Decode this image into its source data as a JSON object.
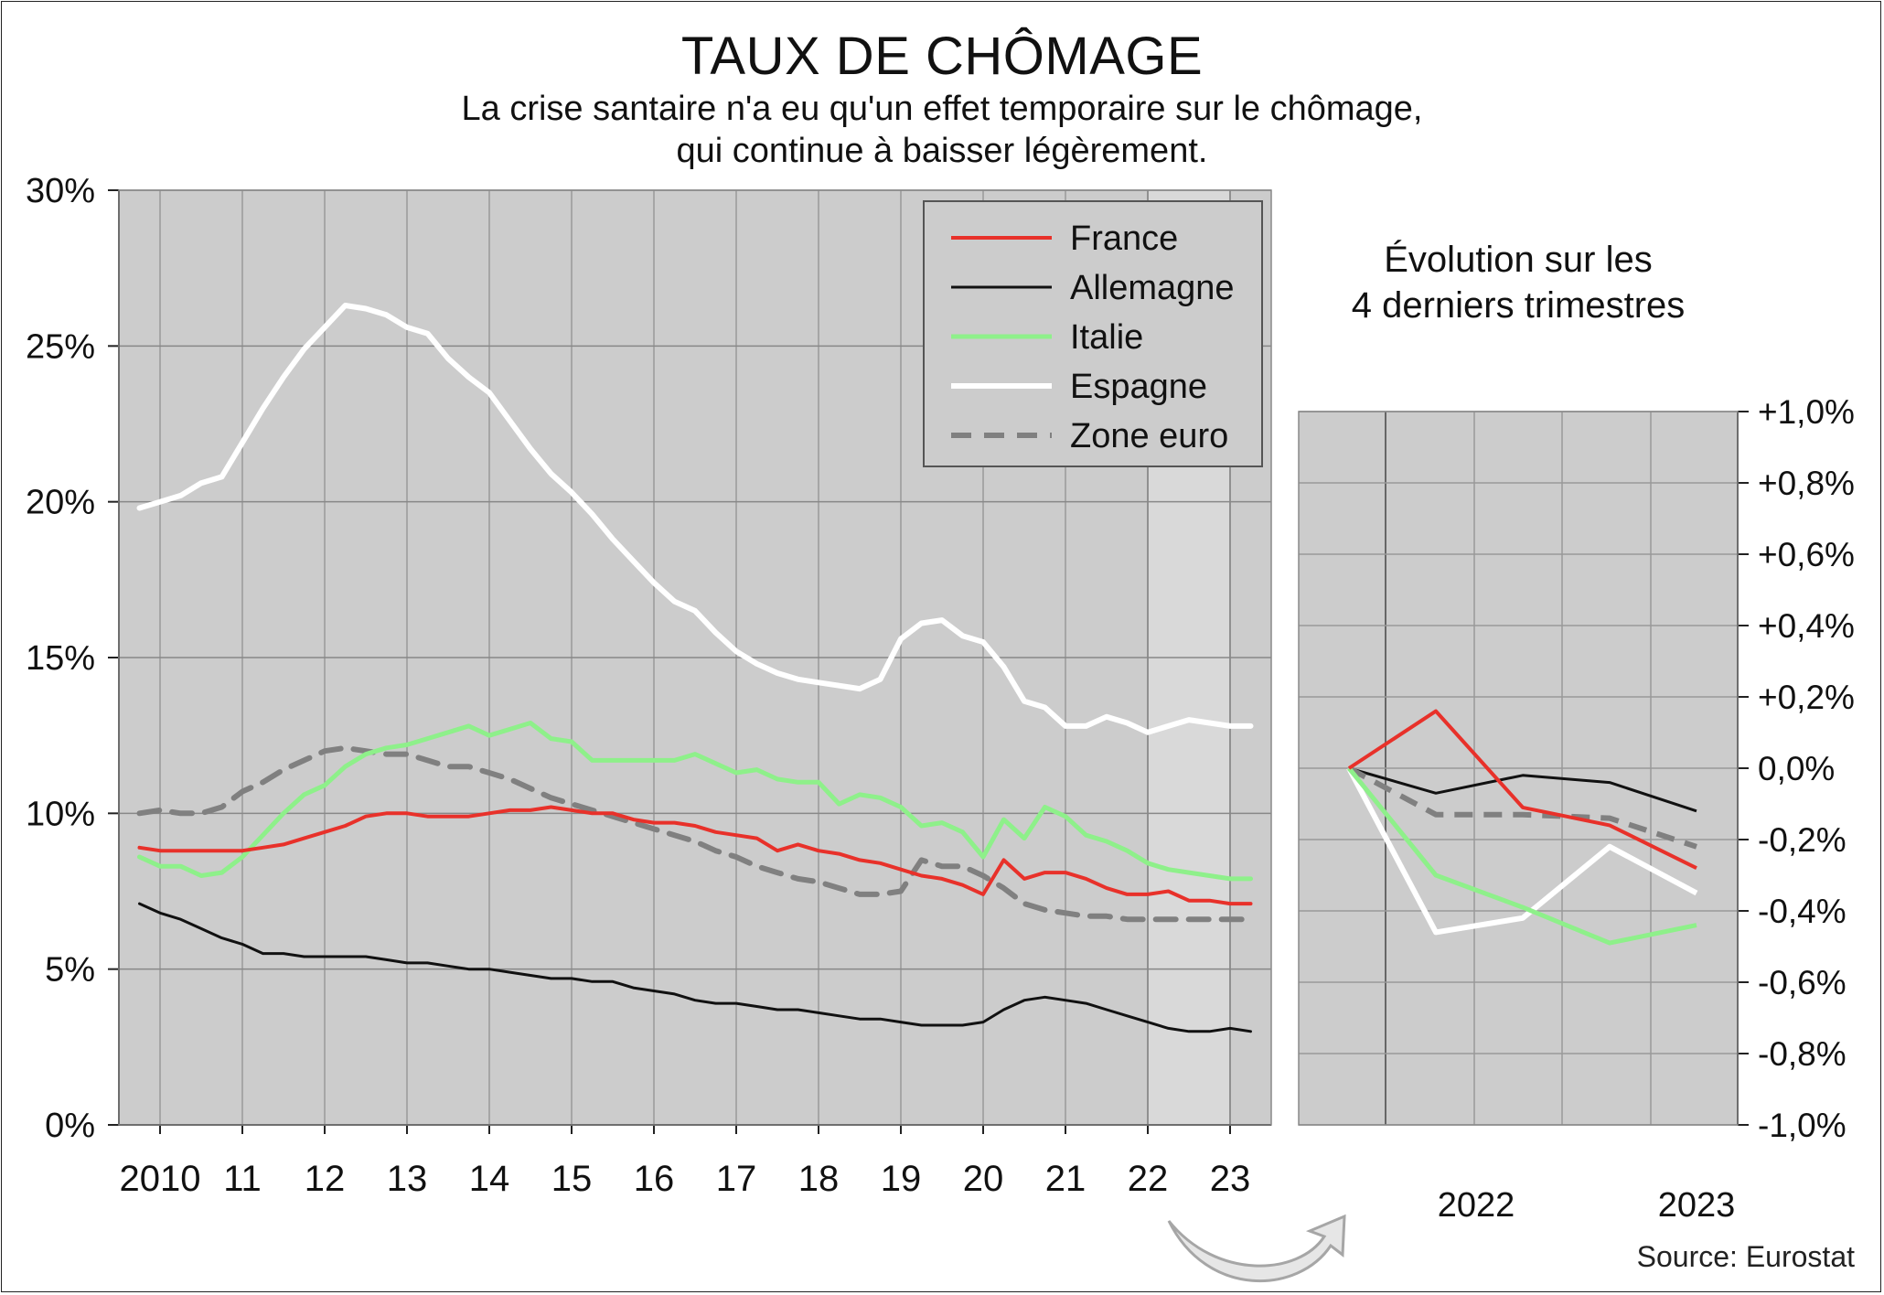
{
  "title": "TAUX DE CHÔMAGE",
  "subtitle_line1": "La crise santaire n'a eu qu'un effet temporaire sur le chômage,",
  "subtitle_line2": "qui continue à baisser légèrement.",
  "side_title_line1": "Évolution sur les",
  "side_title_line2": "4 derniers trimestres",
  "source": "Source: Eurostat",
  "chart_data": [
    {
      "type": "line",
      "title": "TAUX DE CHÔMAGE",
      "ylim": [
        0,
        30
      ],
      "y_ticks": [
        "0%",
        "5%",
        "10%",
        "15%",
        "20%",
        "25%",
        "30%"
      ],
      "y_tick_values": [
        0,
        5,
        10,
        15,
        20,
        25,
        30
      ],
      "x_tick_labels": [
        "2010",
        "11",
        "12",
        "13",
        "14",
        "15",
        "16",
        "17",
        "18",
        "19",
        "20",
        "21",
        "22",
        "23"
      ],
      "xlim": [
        2009.5,
        2023.5
      ],
      "grid": true,
      "legend_position": "top-right",
      "highlight_range": [
        2022.0,
        2023.0
      ],
      "series": [
        {
          "name": "France",
          "color": "#e8312a",
          "style": "solid",
          "x": [
            2009.75,
            2010.0,
            2010.25,
            2010.5,
            2010.75,
            2011.0,
            2011.25,
            2011.5,
            2011.75,
            2012.0,
            2012.25,
            2012.5,
            2012.75,
            2013.0,
            2013.25,
            2013.5,
            2013.75,
            2014.0,
            2014.25,
            2014.5,
            2014.75,
            2015.0,
            2015.25,
            2015.5,
            2015.75,
            2016.0,
            2016.25,
            2016.5,
            2016.75,
            2017.0,
            2017.25,
            2017.5,
            2017.75,
            2018.0,
            2018.25,
            2018.5,
            2018.75,
            2019.0,
            2019.25,
            2019.5,
            2019.75,
            2020.0,
            2020.25,
            2020.5,
            2020.75,
            2021.0,
            2021.25,
            2021.5,
            2021.75,
            2022.0,
            2022.25,
            2022.5,
            2022.75,
            2023.0,
            2023.25
          ],
          "y": [
            8.9,
            8.8,
            8.8,
            8.8,
            8.8,
            8.8,
            8.9,
            9.0,
            9.2,
            9.4,
            9.6,
            9.9,
            10.0,
            10.0,
            9.9,
            9.9,
            9.9,
            10.0,
            10.1,
            10.1,
            10.2,
            10.1,
            10.0,
            10.0,
            9.8,
            9.7,
            9.7,
            9.6,
            9.4,
            9.3,
            9.2,
            8.8,
            9.0,
            8.8,
            8.7,
            8.5,
            8.4,
            8.2,
            8.0,
            7.9,
            7.7,
            7.4,
            8.5,
            7.9,
            8.1,
            8.1,
            7.9,
            7.6,
            7.4,
            7.4,
            7.5,
            7.2,
            7.2,
            7.1,
            7.1
          ]
        },
        {
          "name": "Allemagne",
          "color": "#111111",
          "style": "solid",
          "x": [
            2009.75,
            2010.0,
            2010.25,
            2010.5,
            2010.75,
            2011.0,
            2011.25,
            2011.5,
            2011.75,
            2012.0,
            2012.25,
            2012.5,
            2012.75,
            2013.0,
            2013.25,
            2013.5,
            2013.75,
            2014.0,
            2014.25,
            2014.5,
            2014.75,
            2015.0,
            2015.25,
            2015.5,
            2015.75,
            2016.0,
            2016.25,
            2016.5,
            2016.75,
            2017.0,
            2017.25,
            2017.5,
            2017.75,
            2018.0,
            2018.25,
            2018.5,
            2018.75,
            2019.0,
            2019.25,
            2019.5,
            2019.75,
            2020.0,
            2020.25,
            2020.5,
            2020.75,
            2021.0,
            2021.25,
            2021.5,
            2021.75,
            2022.0,
            2022.25,
            2022.5,
            2022.75,
            2023.0,
            2023.25
          ],
          "y": [
            7.1,
            6.8,
            6.6,
            6.3,
            6.0,
            5.8,
            5.5,
            5.5,
            5.4,
            5.4,
            5.4,
            5.4,
            5.3,
            5.2,
            5.2,
            5.1,
            5.0,
            5.0,
            4.9,
            4.8,
            4.7,
            4.7,
            4.6,
            4.6,
            4.4,
            4.3,
            4.2,
            4.0,
            3.9,
            3.9,
            3.8,
            3.7,
            3.7,
            3.6,
            3.5,
            3.4,
            3.4,
            3.3,
            3.2,
            3.2,
            3.2,
            3.3,
            3.7,
            4.0,
            4.1,
            4.0,
            3.9,
            3.7,
            3.5,
            3.3,
            3.1,
            3.0,
            3.0,
            3.1,
            3.0
          ]
        },
        {
          "name": "Italie",
          "color": "#8ef08a",
          "style": "solid",
          "x": [
            2009.75,
            2010.0,
            2010.25,
            2010.5,
            2010.75,
            2011.0,
            2011.25,
            2011.5,
            2011.75,
            2012.0,
            2012.25,
            2012.5,
            2012.75,
            2013.0,
            2013.25,
            2013.5,
            2013.75,
            2014.0,
            2014.25,
            2014.5,
            2014.75,
            2015.0,
            2015.25,
            2015.5,
            2015.75,
            2016.0,
            2016.25,
            2016.5,
            2016.75,
            2017.0,
            2017.25,
            2017.5,
            2017.75,
            2018.0,
            2018.25,
            2018.5,
            2018.75,
            2019.0,
            2019.25,
            2019.5,
            2019.75,
            2020.0,
            2020.25,
            2020.5,
            2020.75,
            2021.0,
            2021.25,
            2021.5,
            2021.75,
            2022.0,
            2022.25,
            2022.5,
            2022.75,
            2023.0,
            2023.25
          ],
          "y": [
            8.6,
            8.3,
            8.3,
            8.0,
            8.1,
            8.6,
            9.3,
            10.0,
            10.6,
            10.9,
            11.5,
            11.9,
            12.1,
            12.2,
            12.4,
            12.6,
            12.8,
            12.5,
            12.7,
            12.9,
            12.4,
            12.3,
            11.7,
            11.7,
            11.7,
            11.7,
            11.7,
            11.9,
            11.6,
            11.3,
            11.4,
            11.1,
            11.0,
            11.0,
            10.3,
            10.6,
            10.5,
            10.2,
            9.6,
            9.7,
            9.4,
            8.6,
            9.8,
            9.2,
            10.2,
            9.9,
            9.3,
            9.1,
            8.8,
            8.4,
            8.2,
            8.1,
            8.0,
            7.9,
            7.9
          ]
        },
        {
          "name": "Espagne",
          "color": "#ffffff",
          "style": "solid",
          "x": [
            2009.75,
            2010.0,
            2010.25,
            2010.5,
            2010.75,
            2011.0,
            2011.25,
            2011.5,
            2011.75,
            2012.0,
            2012.25,
            2012.5,
            2012.75,
            2013.0,
            2013.25,
            2013.5,
            2013.75,
            2014.0,
            2014.25,
            2014.5,
            2014.75,
            2015.0,
            2015.25,
            2015.5,
            2015.75,
            2016.0,
            2016.25,
            2016.5,
            2016.75,
            2017.0,
            2017.25,
            2017.5,
            2017.75,
            2018.0,
            2018.25,
            2018.5,
            2018.75,
            2019.0,
            2019.25,
            2019.5,
            2019.75,
            2020.0,
            2020.25,
            2020.5,
            2020.75,
            2021.0,
            2021.25,
            2021.5,
            2021.75,
            2022.0,
            2022.25,
            2022.5,
            2022.75,
            2023.0,
            2023.25
          ],
          "y": [
            19.8,
            20.0,
            20.2,
            20.6,
            20.8,
            21.9,
            23.0,
            24.0,
            24.9,
            25.6,
            26.3,
            26.2,
            26.0,
            25.6,
            25.4,
            24.6,
            24.0,
            23.5,
            22.6,
            21.7,
            20.9,
            20.3,
            19.6,
            18.8,
            18.1,
            17.4,
            16.8,
            16.5,
            15.8,
            15.2,
            14.8,
            14.5,
            14.3,
            14.2,
            14.1,
            14.0,
            14.3,
            15.6,
            16.1,
            16.2,
            15.7,
            15.5,
            14.7,
            13.6,
            13.4,
            12.8,
            12.8,
            13.1,
            12.9,
            12.6,
            12.8,
            13.0,
            12.9,
            12.8,
            12.8
          ]
        },
        {
          "name": "Zone euro",
          "color": "#808080",
          "style": "dashed",
          "x": [
            2009.75,
            2010.0,
            2010.25,
            2010.5,
            2010.75,
            2011.0,
            2011.25,
            2011.5,
            2011.75,
            2012.0,
            2012.25,
            2012.5,
            2012.75,
            2013.0,
            2013.25,
            2013.5,
            2013.75,
            2014.0,
            2014.25,
            2014.5,
            2014.75,
            2015.0,
            2015.25,
            2015.5,
            2015.75,
            2016.0,
            2016.25,
            2016.5,
            2016.75,
            2017.0,
            2017.25,
            2017.5,
            2017.75,
            2018.0,
            2018.25,
            2018.5,
            2018.75,
            2019.0,
            2019.25,
            2019.5,
            2019.75,
            2020.0,
            2020.25,
            2020.5,
            2020.75,
            2021.0,
            2021.25,
            2021.5,
            2021.75,
            2022.0,
            2022.25,
            2022.5,
            2022.75,
            2023.0,
            2023.25
          ],
          "y": [
            10.0,
            10.1,
            10.0,
            10.0,
            10.2,
            10.7,
            11.0,
            11.4,
            11.7,
            12.0,
            12.1,
            12.0,
            11.9,
            11.9,
            11.7,
            11.5,
            11.5,
            11.3,
            11.1,
            10.8,
            10.5,
            10.3,
            10.1,
            9.9,
            9.7,
            9.5,
            9.3,
            9.1,
            8.8,
            8.6,
            8.3,
            8.1,
            7.9,
            7.8,
            7.6,
            7.4,
            7.4,
            7.5,
            8.5,
            8.3,
            8.3,
            8.0,
            7.6,
            7.1,
            6.9,
            6.8,
            6.7,
            6.7,
            6.6,
            6.6,
            6.6,
            6.6,
            6.6,
            6.6,
            6.6
          ]
        }
      ]
    },
    {
      "type": "line",
      "title": "Évolution sur les 4 derniers trimestres",
      "ylim": [
        -1.0,
        1.0
      ],
      "y_ticks": [
        "+1,0%",
        "+0,8%",
        "+0,6%",
        "+0,4%",
        "+0,2%",
        "0,0%",
        "-0,2%",
        "-0,4%",
        "-0,6%",
        "-0,8%",
        "-1,0%"
      ],
      "y_tick_values": [
        1.0,
        0.8,
        0.6,
        0.4,
        0.2,
        0.0,
        -0.2,
        -0.4,
        -0.6,
        -0.8,
        -1.0
      ],
      "x_tick_labels": [
        "2022",
        "2023"
      ],
      "grid": true,
      "series": [
        {
          "name": "France",
          "color": "#e8312a",
          "style": "solid",
          "x": [
            0,
            1,
            2,
            3,
            4
          ],
          "y": [
            0.0,
            0.16,
            -0.11,
            -0.16,
            -0.28
          ]
        },
        {
          "name": "Allemagne",
          "color": "#111111",
          "style": "solid",
          "x": [
            0,
            1,
            2,
            3,
            4
          ],
          "y": [
            0.0,
            -0.07,
            -0.02,
            -0.04,
            -0.12
          ]
        },
        {
          "name": "Italie",
          "color": "#8ef08a",
          "style": "solid",
          "x": [
            0,
            1,
            2,
            3,
            4
          ],
          "y": [
            0.0,
            -0.3,
            -0.39,
            -0.49,
            -0.44
          ]
        },
        {
          "name": "Espagne",
          "color": "#ffffff",
          "style": "solid",
          "x": [
            0,
            1,
            2,
            3,
            4
          ],
          "y": [
            0.0,
            -0.46,
            -0.42,
            -0.22,
            -0.35
          ]
        },
        {
          "name": "Zone euro",
          "color": "#808080",
          "style": "dashed",
          "x": [
            0,
            1,
            2,
            3,
            4
          ],
          "y": [
            0.0,
            -0.13,
            -0.13,
            -0.14,
            -0.22
          ]
        }
      ]
    }
  ]
}
